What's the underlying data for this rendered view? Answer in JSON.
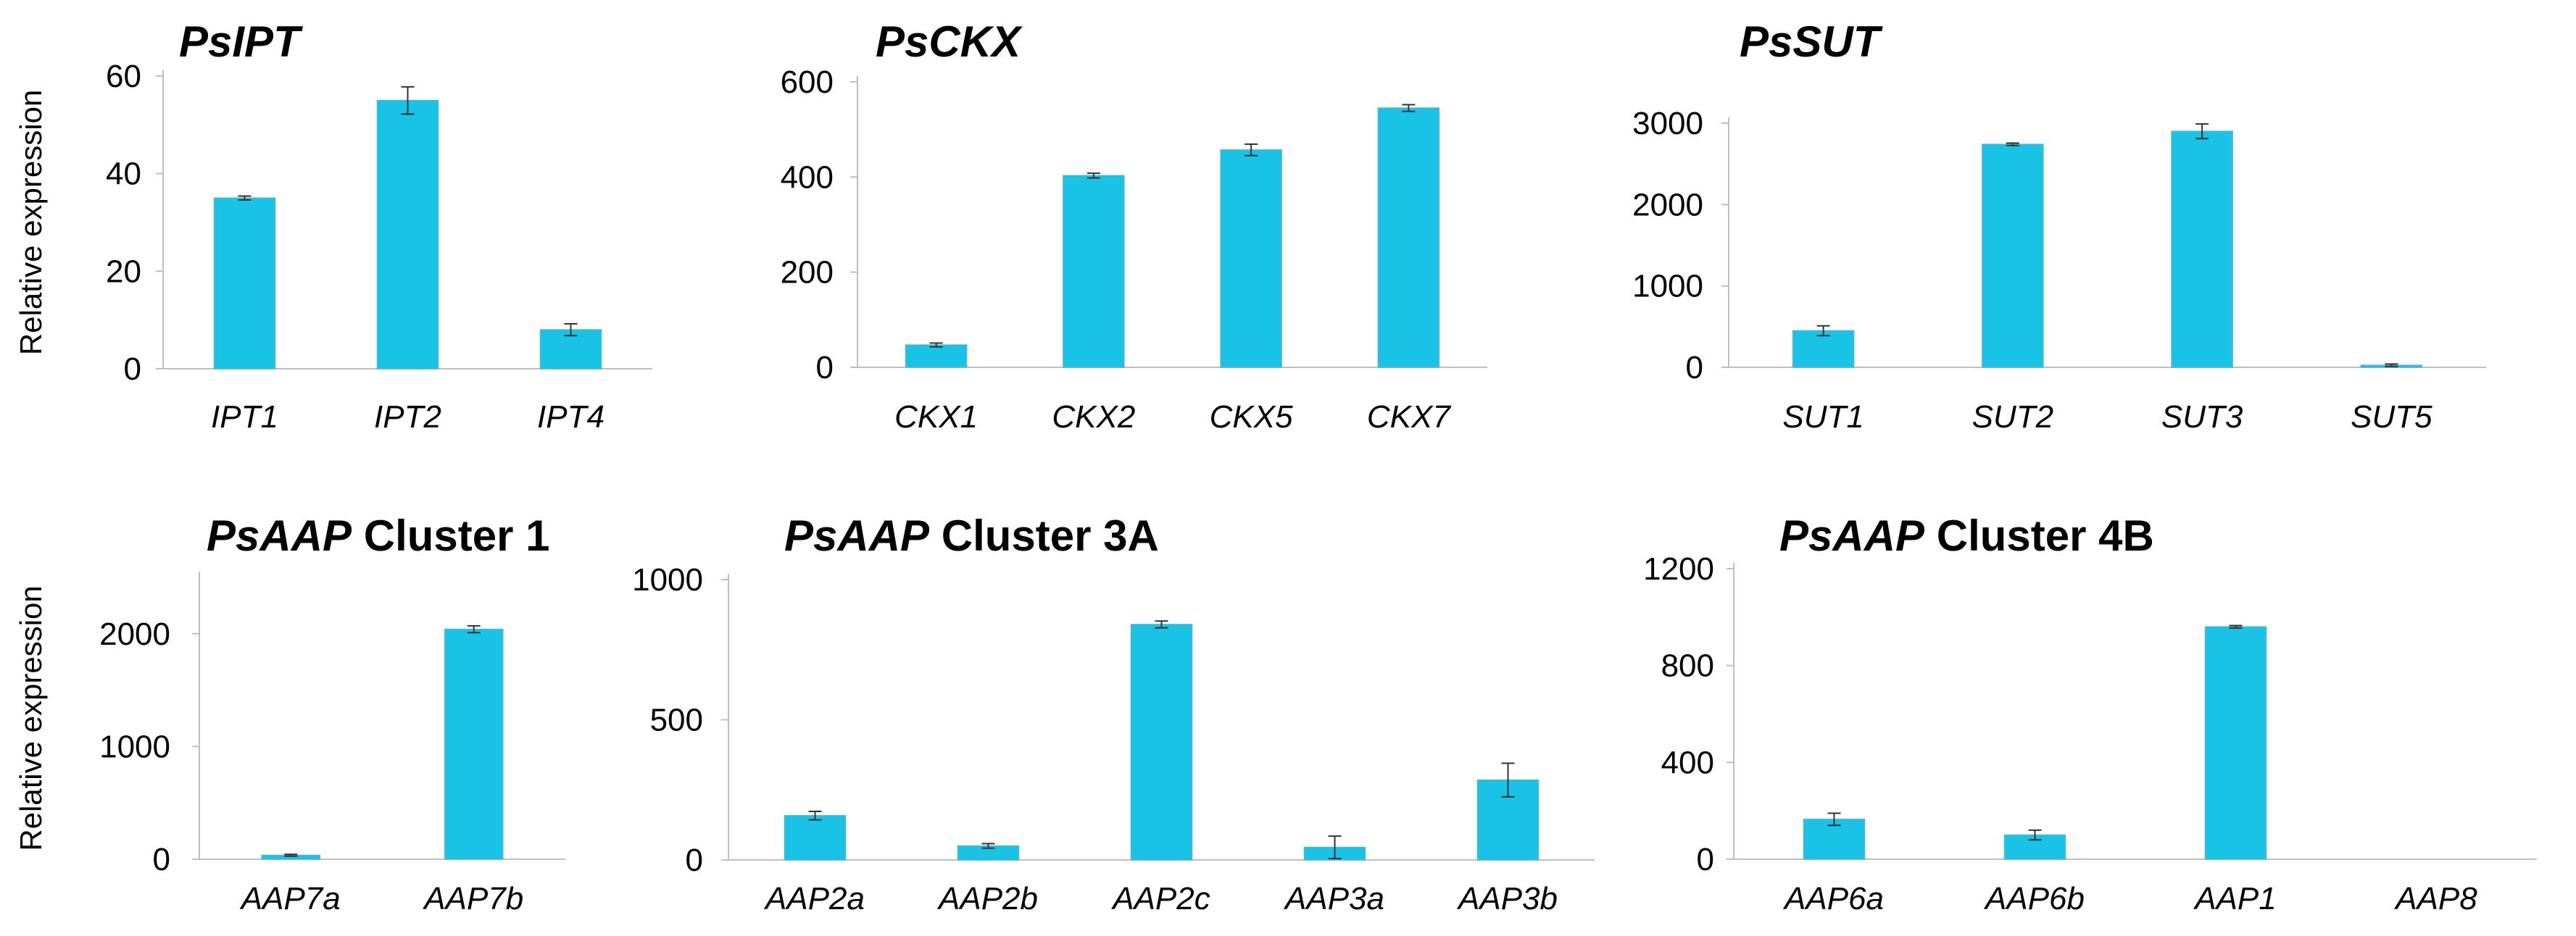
{
  "colors": {
    "bar": "#19c3e6",
    "bar_edge": "#4fb6cf",
    "axis": "#bfbfbf",
    "error": "#333333"
  },
  "chart_data": [
    {
      "type": "bar",
      "title_italic": "PsIPT",
      "title_rest": "",
      "ylabel": "Relative expression",
      "categories": [
        "IPT1",
        "IPT2",
        "IPT4"
      ],
      "values": [
        35,
        55,
        8
      ],
      "errors": [
        0.4,
        2.8,
        1.2
      ],
      "ylim": [
        0,
        60
      ],
      "yticks": [
        0,
        20,
        40,
        60
      ]
    },
    {
      "type": "bar",
      "title_italic": "PsCKX",
      "title_rest": "",
      "ylabel": "",
      "categories": [
        "CKX1",
        "CKX2",
        "CKX5",
        "CKX7"
      ],
      "values": [
        47,
        403,
        457,
        545
      ],
      "errors": [
        4,
        5,
        12,
        7
      ],
      "ylim": [
        0,
        600
      ],
      "yticks": [
        0,
        200,
        400,
        600
      ]
    },
    {
      "type": "bar",
      "title_italic": "PsSUT",
      "title_rest": "",
      "ylabel": "",
      "categories": [
        "SUT1",
        "SUT2",
        "SUT3",
        "SUT5"
      ],
      "values": [
        450,
        2740,
        2900,
        25
      ],
      "errors": [
        60,
        15,
        90,
        15
      ],
      "ylim": [
        0,
        3000
      ],
      "yticks": [
        0,
        1000,
        2000,
        3000
      ]
    },
    {
      "type": "bar",
      "title_italic": "PsAAP",
      "title_rest": " Cluster 1",
      "ylabel": "Relative expression",
      "categories": [
        "AAP7a",
        "AAP7b"
      ],
      "values": [
        35,
        2040
      ],
      "errors": [
        8,
        30
      ],
      "ylim": [
        0,
        2500
      ],
      "yticks": [
        0,
        1000,
        2000
      ]
    },
    {
      "type": "bar",
      "title_italic": "PsAAP",
      "title_rest": " Cluster 3A",
      "ylabel": "",
      "categories": [
        "AAP2a",
        "AAP2b",
        "AAP2c",
        "AAP3a",
        "AAP3b"
      ],
      "values": [
        158,
        50,
        840,
        45,
        285
      ],
      "errors": [
        15,
        8,
        12,
        40,
        60
      ],
      "ylim": [
        0,
        1000
      ],
      "yticks": [
        0,
        500,
        1000
      ]
    },
    {
      "type": "bar",
      "title_italic": "PsAAP",
      "title_rest": " Cluster 4B",
      "ylabel": "",
      "categories": [
        "AAP6a",
        "AAP6b",
        "AAP1",
        "AAP8"
      ],
      "values": [
        165,
        100,
        960,
        0
      ],
      "errors": [
        25,
        20,
        5,
        0
      ],
      "ylim": [
        0,
        1200
      ],
      "yticks": [
        0,
        400,
        800,
        1200
      ]
    }
  ]
}
